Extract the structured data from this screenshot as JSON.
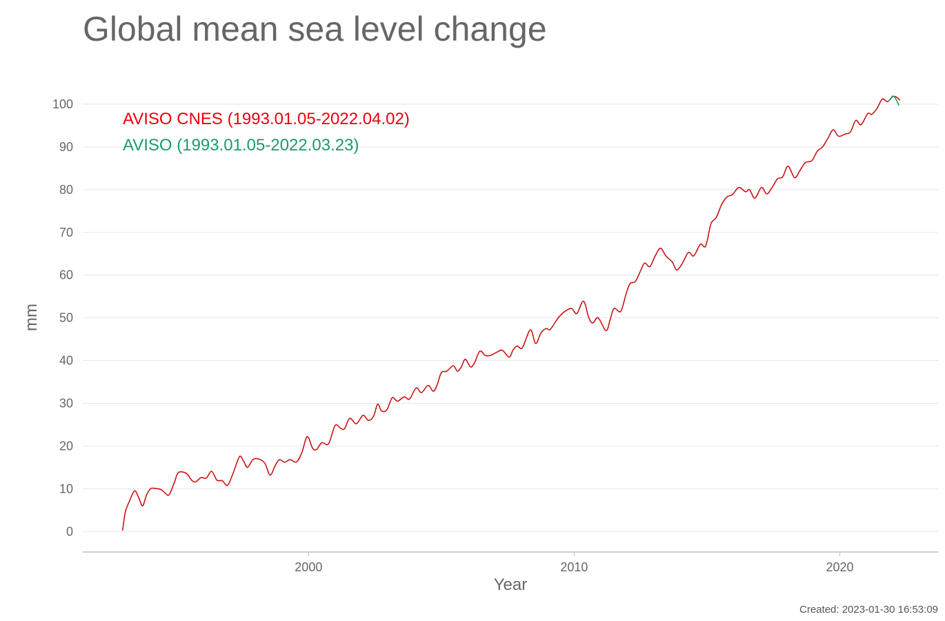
{
  "chart_data": {
    "type": "line",
    "title": "Global mean sea level change",
    "xlabel": "Year",
    "ylabel": "mm",
    "xlim": [
      1991.5,
      2023.7
    ],
    "ylim": [
      -4.8,
      105
    ],
    "x_ticks": [
      2000,
      2010,
      2020
    ],
    "y_ticks": [
      0,
      10,
      20,
      30,
      40,
      50,
      60,
      70,
      80,
      90,
      100
    ],
    "grid": true,
    "legend_position": "top-left",
    "series": [
      {
        "name": "AVISO CNES (1993.01.05-2022.04.02)",
        "color": "#cc1111",
        "legend_color": "#e8000b",
        "points": [
          [
            1993.0,
            0.3
          ],
          [
            1993.1,
            4.5
          ],
          [
            1993.25,
            7.0
          ],
          [
            1993.45,
            9.5
          ],
          [
            1993.6,
            8.0
          ],
          [
            1993.75,
            6.0
          ],
          [
            1993.9,
            8.5
          ],
          [
            1994.05,
            10.0
          ],
          [
            1994.2,
            10.1
          ],
          [
            1994.45,
            9.8
          ],
          [
            1994.6,
            9.0
          ],
          [
            1994.75,
            8.6
          ],
          [
            1994.95,
            11.5
          ],
          [
            1995.1,
            13.8
          ],
          [
            1995.4,
            13.6
          ],
          [
            1995.6,
            12.0
          ],
          [
            1995.75,
            11.6
          ],
          [
            1995.95,
            12.6
          ],
          [
            1996.15,
            12.5
          ],
          [
            1996.35,
            14.1
          ],
          [
            1996.55,
            12.0
          ],
          [
            1996.75,
            11.9
          ],
          [
            1996.95,
            10.8
          ],
          [
            1997.15,
            13.5
          ],
          [
            1997.4,
            17.5
          ],
          [
            1997.55,
            16.5
          ],
          [
            1997.7,
            15.0
          ],
          [
            1997.9,
            16.8
          ],
          [
            1998.1,
            17.0
          ],
          [
            1998.35,
            16.0
          ],
          [
            1998.55,
            13.2
          ],
          [
            1998.75,
            15.5
          ],
          [
            1998.9,
            16.8
          ],
          [
            1999.1,
            16.2
          ],
          [
            1999.3,
            16.8
          ],
          [
            1999.55,
            16.3
          ],
          [
            1999.75,
            18.5
          ],
          [
            1999.95,
            22.2
          ],
          [
            2000.15,
            19.5
          ],
          [
            2000.3,
            19.2
          ],
          [
            2000.5,
            20.8
          ],
          [
            2000.75,
            20.5
          ],
          [
            2001.0,
            24.8
          ],
          [
            2001.2,
            24.2
          ],
          [
            2001.35,
            24.0
          ],
          [
            2001.55,
            26.5
          ],
          [
            2001.8,
            25.2
          ],
          [
            2002.05,
            27.2
          ],
          [
            2002.25,
            26.0
          ],
          [
            2002.45,
            27.0
          ],
          [
            2002.6,
            29.8
          ],
          [
            2002.75,
            28.2
          ],
          [
            2002.95,
            28.5
          ],
          [
            2003.15,
            31.3
          ],
          [
            2003.35,
            30.5
          ],
          [
            2003.6,
            31.5
          ],
          [
            2003.8,
            31.0
          ],
          [
            2004.05,
            33.6
          ],
          [
            2004.25,
            32.5
          ],
          [
            2004.5,
            34.2
          ],
          [
            2004.7,
            32.8
          ],
          [
            2004.85,
            34.5
          ],
          [
            2005.0,
            37.2
          ],
          [
            2005.2,
            37.5
          ],
          [
            2005.45,
            38.8
          ],
          [
            2005.6,
            37.5
          ],
          [
            2005.75,
            38.5
          ],
          [
            2005.9,
            40.3
          ],
          [
            2006.1,
            38.5
          ],
          [
            2006.25,
            39.5
          ],
          [
            2006.45,
            42.2
          ],
          [
            2006.65,
            41.2
          ],
          [
            2006.85,
            41.2
          ],
          [
            2007.1,
            42.0
          ],
          [
            2007.3,
            42.4
          ],
          [
            2007.55,
            40.8
          ],
          [
            2007.7,
            42.5
          ],
          [
            2007.85,
            43.4
          ],
          [
            2008.05,
            43.0
          ],
          [
            2008.35,
            47.2
          ],
          [
            2008.55,
            44.0
          ],
          [
            2008.75,
            46.5
          ],
          [
            2008.95,
            47.5
          ],
          [
            2009.1,
            47.3
          ],
          [
            2009.4,
            50.0
          ],
          [
            2009.65,
            51.5
          ],
          [
            2009.9,
            52.2
          ],
          [
            2010.1,
            51.0
          ],
          [
            2010.35,
            53.9
          ],
          [
            2010.55,
            50.0
          ],
          [
            2010.7,
            48.8
          ],
          [
            2010.9,
            50.0
          ],
          [
            2011.2,
            47.0
          ],
          [
            2011.35,
            49.5
          ],
          [
            2011.5,
            52.2
          ],
          [
            2011.75,
            51.5
          ],
          [
            2011.95,
            55.5
          ],
          [
            2012.1,
            58.0
          ],
          [
            2012.3,
            58.5
          ],
          [
            2012.5,
            61.0
          ],
          [
            2012.65,
            62.8
          ],
          [
            2012.85,
            62.0
          ],
          [
            2013.05,
            64.5
          ],
          [
            2013.25,
            66.3
          ],
          [
            2013.45,
            64.5
          ],
          [
            2013.7,
            63.0
          ],
          [
            2013.85,
            61.2
          ],
          [
            2014.05,
            62.5
          ],
          [
            2014.3,
            65.3
          ],
          [
            2014.5,
            64.5
          ],
          [
            2014.75,
            67.2
          ],
          [
            2014.95,
            66.8
          ],
          [
            2015.15,
            72.0
          ],
          [
            2015.35,
            73.5
          ],
          [
            2015.55,
            76.5
          ],
          [
            2015.75,
            78.3
          ],
          [
            2015.95,
            78.8
          ],
          [
            2016.2,
            80.5
          ],
          [
            2016.45,
            79.5
          ],
          [
            2016.6,
            80.0
          ],
          [
            2016.8,
            78.0
          ],
          [
            2017.05,
            80.5
          ],
          [
            2017.25,
            79.0
          ],
          [
            2017.45,
            80.5
          ],
          [
            2017.65,
            82.5
          ],
          [
            2017.85,
            83.0
          ],
          [
            2018.05,
            85.5
          ],
          [
            2018.3,
            82.8
          ],
          [
            2018.5,
            84.5
          ],
          [
            2018.7,
            86.3
          ],
          [
            2018.95,
            86.8
          ],
          [
            2019.15,
            89.0
          ],
          [
            2019.35,
            90.0
          ],
          [
            2019.55,
            92.0
          ],
          [
            2019.75,
            94.0
          ],
          [
            2019.95,
            92.5
          ],
          [
            2020.2,
            93.0
          ],
          [
            2020.4,
            93.5
          ],
          [
            2020.6,
            96.2
          ],
          [
            2020.8,
            95.2
          ],
          [
            2021.05,
            97.8
          ],
          [
            2021.2,
            97.6
          ],
          [
            2021.4,
            99.0
          ],
          [
            2021.6,
            101.2
          ],
          [
            2021.8,
            100.6
          ],
          [
            2022.0,
            101.8
          ],
          [
            2022.15,
            101.6
          ],
          [
            2022.25,
            101.0
          ]
        ]
      },
      {
        "name": "AVISO (1993.01.05-2022.03.23)",
        "color": "#1a9b6c",
        "legend_color": "#1a9b6c",
        "points": [
          [
            2021.85,
            100.8
          ],
          [
            2022.0,
            101.9
          ],
          [
            2022.1,
            101.3
          ],
          [
            2022.22,
            99.8
          ]
        ]
      }
    ]
  },
  "footer": {
    "created": "Created: 2023-01-30 16:53:09"
  }
}
